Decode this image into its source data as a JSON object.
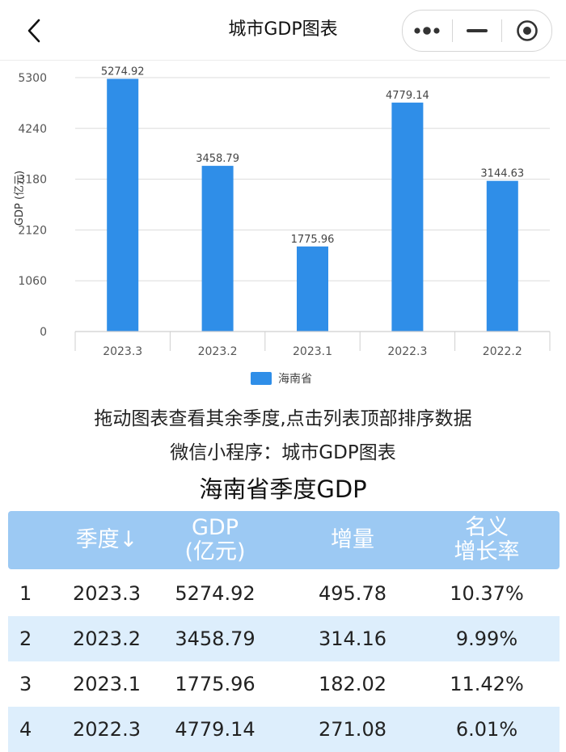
{
  "header": {
    "title": "城市GDP图表"
  },
  "chart_data": {
    "type": "bar",
    "categories": [
      "2023.3",
      "2023.2",
      "2023.1",
      "2022.3",
      "2022.2"
    ],
    "series": [
      {
        "name": "海南省",
        "values": [
          5274.92,
          3458.79,
          1775.96,
          4779.14,
          3144.63
        ]
      }
    ],
    "value_labels": [
      "5274.92",
      "3458.79",
      "1775.96",
      "4779.14",
      "3144.63"
    ],
    "yticks": [
      "0",
      "1060",
      "2120",
      "3180",
      "4240",
      "5300"
    ],
    "ylim": [
      0,
      5300
    ],
    "ylabel": "GDP (亿元)",
    "xlabel": "",
    "grid": true,
    "legend_position": "bottom",
    "color": "#2f8ee8"
  },
  "hints": {
    "line1": "拖动图表查看其余季度,点击列表顶部排序数据",
    "line2": "微信小程序：城市GDP图表"
  },
  "table": {
    "title": "海南省季度GDP",
    "headers": {
      "quarter": "季度↓",
      "gdp_1": "GDP",
      "gdp_2": "(亿元)",
      "increase": "增量",
      "rate_1": "名义",
      "rate_2": "增长率"
    },
    "rows": [
      {
        "index": "1",
        "quarter": "2023.3",
        "gdp": "5274.92",
        "increase": "495.78",
        "rate": "10.37%"
      },
      {
        "index": "2",
        "quarter": "2023.2",
        "gdp": "3458.79",
        "increase": "314.16",
        "rate": "9.99%"
      },
      {
        "index": "3",
        "quarter": "2023.1",
        "gdp": "1775.96",
        "increase": "182.02",
        "rate": "11.42%"
      },
      {
        "index": "4",
        "quarter": "2022.3",
        "gdp": "4779.14",
        "increase": "271.08",
        "rate": "6.01%"
      }
    ]
  },
  "colors": {
    "bar": "#2f8ee8",
    "header_bg": "#9cc9f3",
    "row_alt": "#ddeefc"
  }
}
